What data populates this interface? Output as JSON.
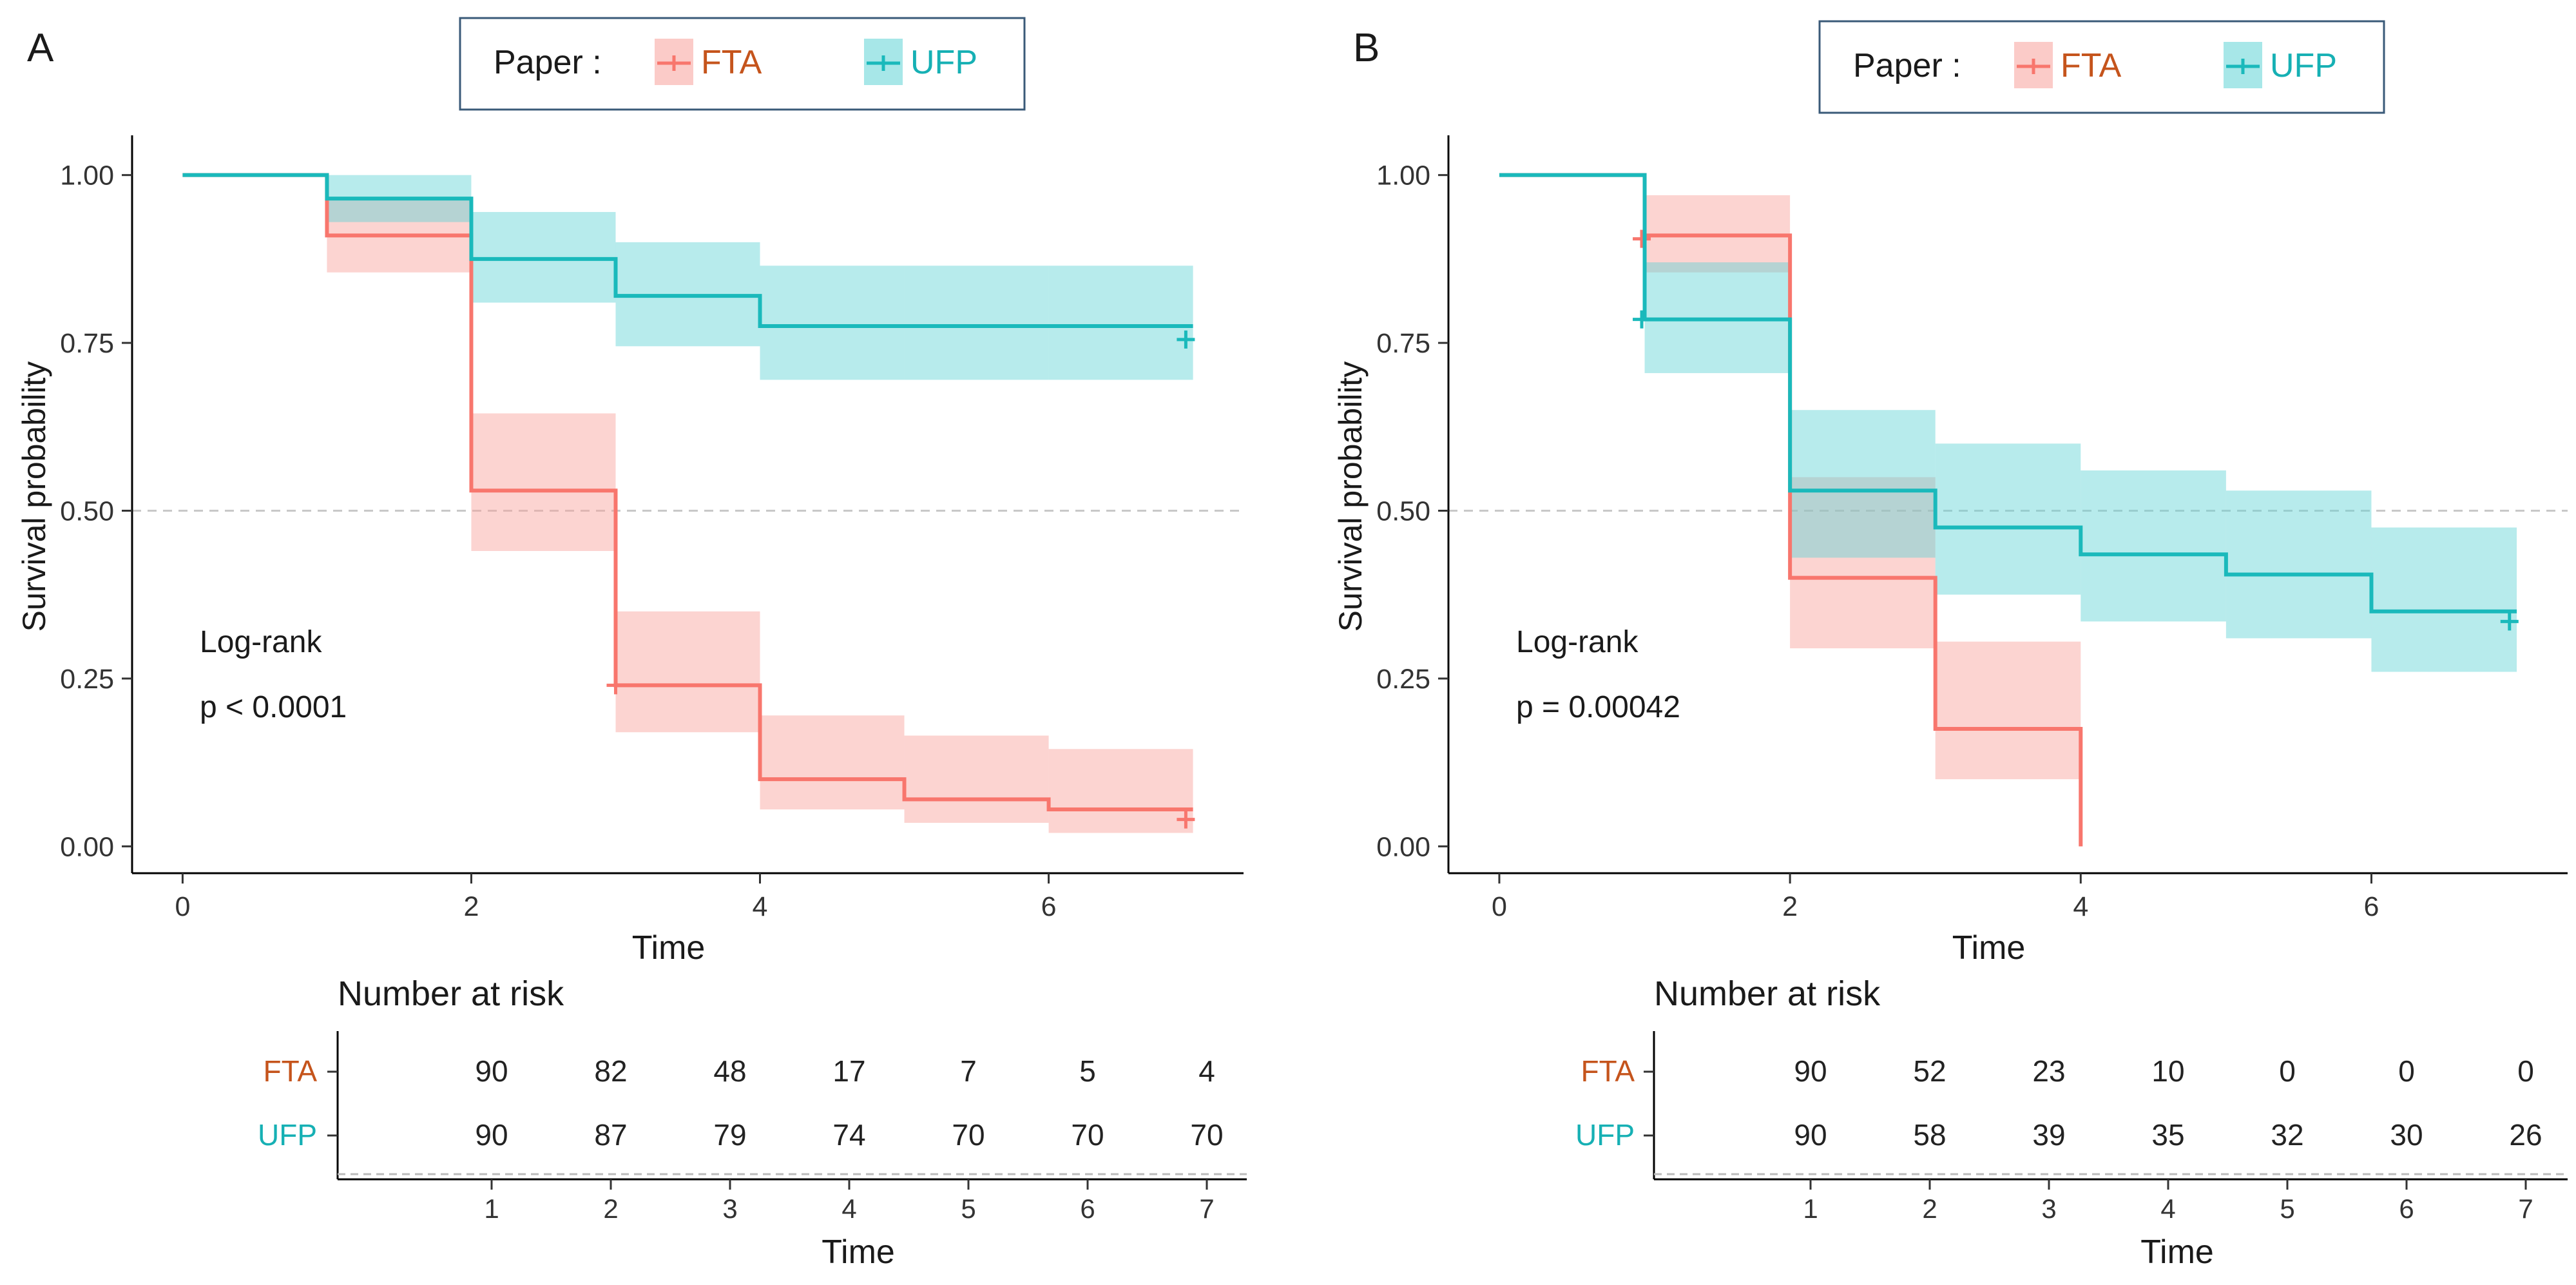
{
  "colors": {
    "fta": "#F8766D",
    "ufp": "#1AB9BB",
    "fta_text": "#C5541C",
    "ufp_text": "#16B0B4",
    "fta_band": "#F8A09A",
    "ufp_band": "#5FD3D5"
  },
  "chart_data": [
    {
      "panel": "A",
      "type": "line",
      "title": "",
      "xlabel": "Time",
      "ylabel": "Survival probability",
      "xlim": [
        -0.35,
        7.35
      ],
      "ylim": [
        -0.04,
        1.04
      ],
      "xticks": [
        0,
        2,
        4,
        6
      ],
      "yticks": [
        0.0,
        0.25,
        0.5,
        0.75,
        1.0
      ],
      "ytick_labels": [
        "0.00",
        "0.25",
        "0.50",
        "0.75",
        "1.00"
      ],
      "median_line": 0.5,
      "legend": {
        "title": "Paper :",
        "position": "top",
        "entries": [
          "FTA",
          "UFP"
        ]
      },
      "annotation": [
        "Log-rank",
        "p < 0.0001"
      ],
      "series": [
        {
          "name": "FTA",
          "times": [
            0,
            1,
            2,
            3,
            4,
            5,
            6,
            7
          ],
          "surv": [
            1.0,
            0.91,
            0.53,
            0.24,
            0.1,
            0.07,
            0.055,
            0.055
          ],
          "lower": [
            1.0,
            0.855,
            0.44,
            0.17,
            0.055,
            0.035,
            0.02,
            0.02
          ],
          "upper": [
            1.0,
            0.965,
            0.645,
            0.35,
            0.195,
            0.165,
            0.145,
            0.145
          ],
          "censor": [
            [
              3.0,
              0.24
            ],
            [
              6.95,
              0.04
            ]
          ]
        },
        {
          "name": "UFP",
          "times": [
            0,
            1,
            2,
            3,
            4,
            5,
            6,
            7
          ],
          "surv": [
            1.0,
            0.965,
            0.875,
            0.82,
            0.775,
            0.775,
            0.775,
            0.775
          ],
          "lower": [
            1.0,
            0.93,
            0.81,
            0.745,
            0.695,
            0.695,
            0.695,
            0.695
          ],
          "upper": [
            1.0,
            1.0,
            0.945,
            0.9,
            0.865,
            0.865,
            0.865,
            0.865
          ],
          "censor": [
            [
              6.95,
              0.755
            ]
          ]
        }
      ],
      "risk_table": {
        "title": "Number at risk",
        "xlabel": "Time",
        "times": [
          1,
          2,
          3,
          4,
          5,
          6,
          7
        ],
        "rows": [
          {
            "label": "FTA",
            "values": [
              90,
              82,
              48,
              17,
              7,
              5,
              4
            ]
          },
          {
            "label": "UFP",
            "values": [
              90,
              87,
              79,
              74,
              70,
              70,
              70
            ]
          }
        ]
      }
    },
    {
      "panel": "B",
      "type": "line",
      "title": "",
      "xlabel": "Time",
      "ylabel": "Survival probability",
      "xlim": [
        -0.35,
        7.35
      ],
      "ylim": [
        -0.04,
        1.04
      ],
      "xticks": [
        0,
        2,
        4,
        6
      ],
      "yticks": [
        0.0,
        0.25,
        0.5,
        0.75,
        1.0
      ],
      "ytick_labels": [
        "0.00",
        "0.25",
        "0.50",
        "0.75",
        "1.00"
      ],
      "median_line": 0.5,
      "legend": {
        "title": "Paper :",
        "position": "top",
        "entries": [
          "FTA",
          "UFP"
        ]
      },
      "annotation": [
        "Log-rank",
        "p = 0.00042"
      ],
      "series": [
        {
          "name": "FTA",
          "times": [
            0,
            1,
            2,
            3,
            4
          ],
          "surv": [
            1.0,
            0.91,
            0.4,
            0.175,
            0.0
          ],
          "lower": [
            1.0,
            0.855,
            0.295,
            0.1,
            0.0
          ],
          "upper": [
            1.0,
            0.97,
            0.55,
            0.305,
            0.0
          ],
          "censor": [
            [
              0.98,
              0.905
            ]
          ]
        },
        {
          "name": "UFP",
          "times": [
            0,
            1,
            2,
            3,
            4,
            5,
            6,
            7
          ],
          "surv": [
            1.0,
            0.785,
            0.53,
            0.475,
            0.435,
            0.405,
            0.35,
            0.35
          ],
          "lower": [
            1.0,
            0.705,
            0.43,
            0.375,
            0.335,
            0.31,
            0.26,
            0.26
          ],
          "upper": [
            1.0,
            0.87,
            0.65,
            0.6,
            0.56,
            0.53,
            0.475,
            0.475
          ],
          "censor": [
            [
              0.98,
              0.785
            ],
            [
              6.95,
              0.335
            ]
          ]
        }
      ],
      "risk_table": {
        "title": "Number at risk",
        "xlabel": "Time",
        "times": [
          1,
          2,
          3,
          4,
          5,
          6,
          7
        ],
        "rows": [
          {
            "label": "FTA",
            "values": [
              90,
              52,
              23,
              10,
              0,
              0,
              0
            ]
          },
          {
            "label": "UFP",
            "values": [
              90,
              58,
              39,
              35,
              32,
              30,
              26
            ]
          }
        ]
      }
    }
  ]
}
